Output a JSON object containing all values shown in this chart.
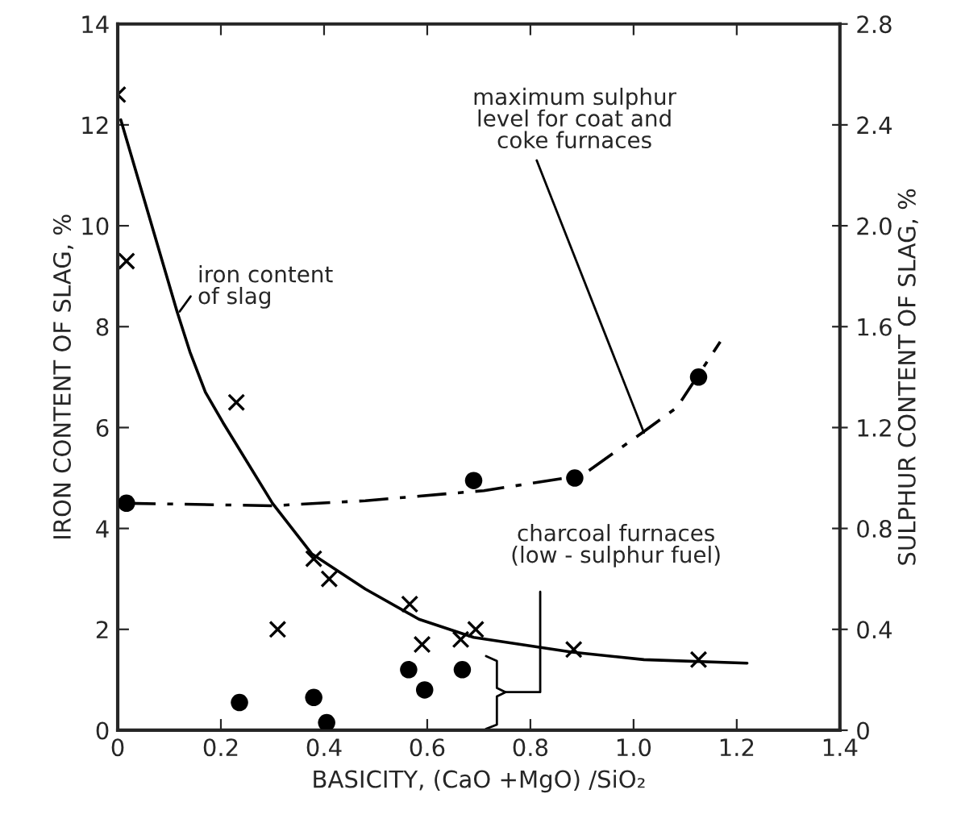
{
  "chart_data": {
    "type": "scatter",
    "xlabel": "BASICITY, (CaO +MgO) /SiO₂",
    "ylabel": "IRON CONTENT OF SLAG, %",
    "y2label": "SULPHUR CONTENT OF SLAG, %",
    "xlim": [
      0,
      1.4
    ],
    "ylim": [
      0,
      14
    ],
    "y2lim": [
      0,
      2.8
    ],
    "xticks": [
      0,
      0.2,
      0.4,
      0.6,
      0.8,
      {
        "value": 1.0,
        "label": "1.0"
      },
      1.2,
      1.4
    ],
    "yticks": [
      0,
      2,
      4,
      6,
      8,
      10,
      12,
      14
    ],
    "y2ticks": [
      0,
      0.4,
      0.8,
      1.2,
      1.6,
      {
        "value": 2.0,
        "label": "2.0"
      },
      2.4,
      2.8
    ],
    "grid": false,
    "legend": false,
    "series": [
      {
        "marker": "cross",
        "color": "#000000",
        "x": [
          0.0,
          0.017,
          0.23,
          0.31,
          0.38,
          0.41,
          0.566,
          0.59,
          0.665,
          0.694,
          0.884,
          1.126
        ],
        "values": [
          12.6,
          9.3,
          6.5,
          2.0,
          3.4,
          3.0,
          2.5,
          1.7,
          1.8,
          2.0,
          1.6,
          1.4
        ]
      },
      {
        "type": "line",
        "marker": "none",
        "line_style": "solid",
        "color": "#000000",
        "x": [
          0.006,
          0.115,
          0.14,
          0.17,
          0.204,
          0.3,
          0.376,
          0.48,
          0.584,
          0.69,
          0.88,
          1.02,
          1.22
        ],
        "values": [
          12.1,
          8.3,
          7.5,
          6.7,
          6.1,
          4.5,
          3.5,
          2.8,
          2.2,
          1.84,
          1.55,
          1.4,
          1.33
        ]
      },
      {
        "axis": "y2",
        "marker": "circle",
        "color": "#000000",
        "x": [
          0.017,
          0.236,
          0.38,
          0.405,
          0.564,
          0.595,
          0.668,
          0.69,
          0.886,
          1.126
        ],
        "values": [
          0.9,
          0.11,
          0.13,
          0.03,
          0.24,
          0.16,
          0.24,
          0.99,
          1.0,
          1.4
        ]
      },
      {
        "type": "line",
        "axis": "y2",
        "marker": "none",
        "line_style": "dashed",
        "color": "#000000",
        "x": [
          0.017,
          0.3,
          0.48,
          0.71,
          0.9,
          1.017,
          1.084,
          1.168
        ],
        "values": [
          0.9,
          0.89,
          0.91,
          0.95,
          1.01,
          1.18,
          1.28,
          1.54
        ]
      }
    ],
    "annotations": [
      {
        "text": "maximum sulphur\nlevel for coat and\ncoke furnaces",
        "x": 1.02,
        "y": 5.9
      },
      {
        "text": "iron content\nof slag",
        "x": 0.12,
        "y": 8.3
      },
      "charcoal furnaces\n(low - sulphur fuel)"
    ]
  }
}
